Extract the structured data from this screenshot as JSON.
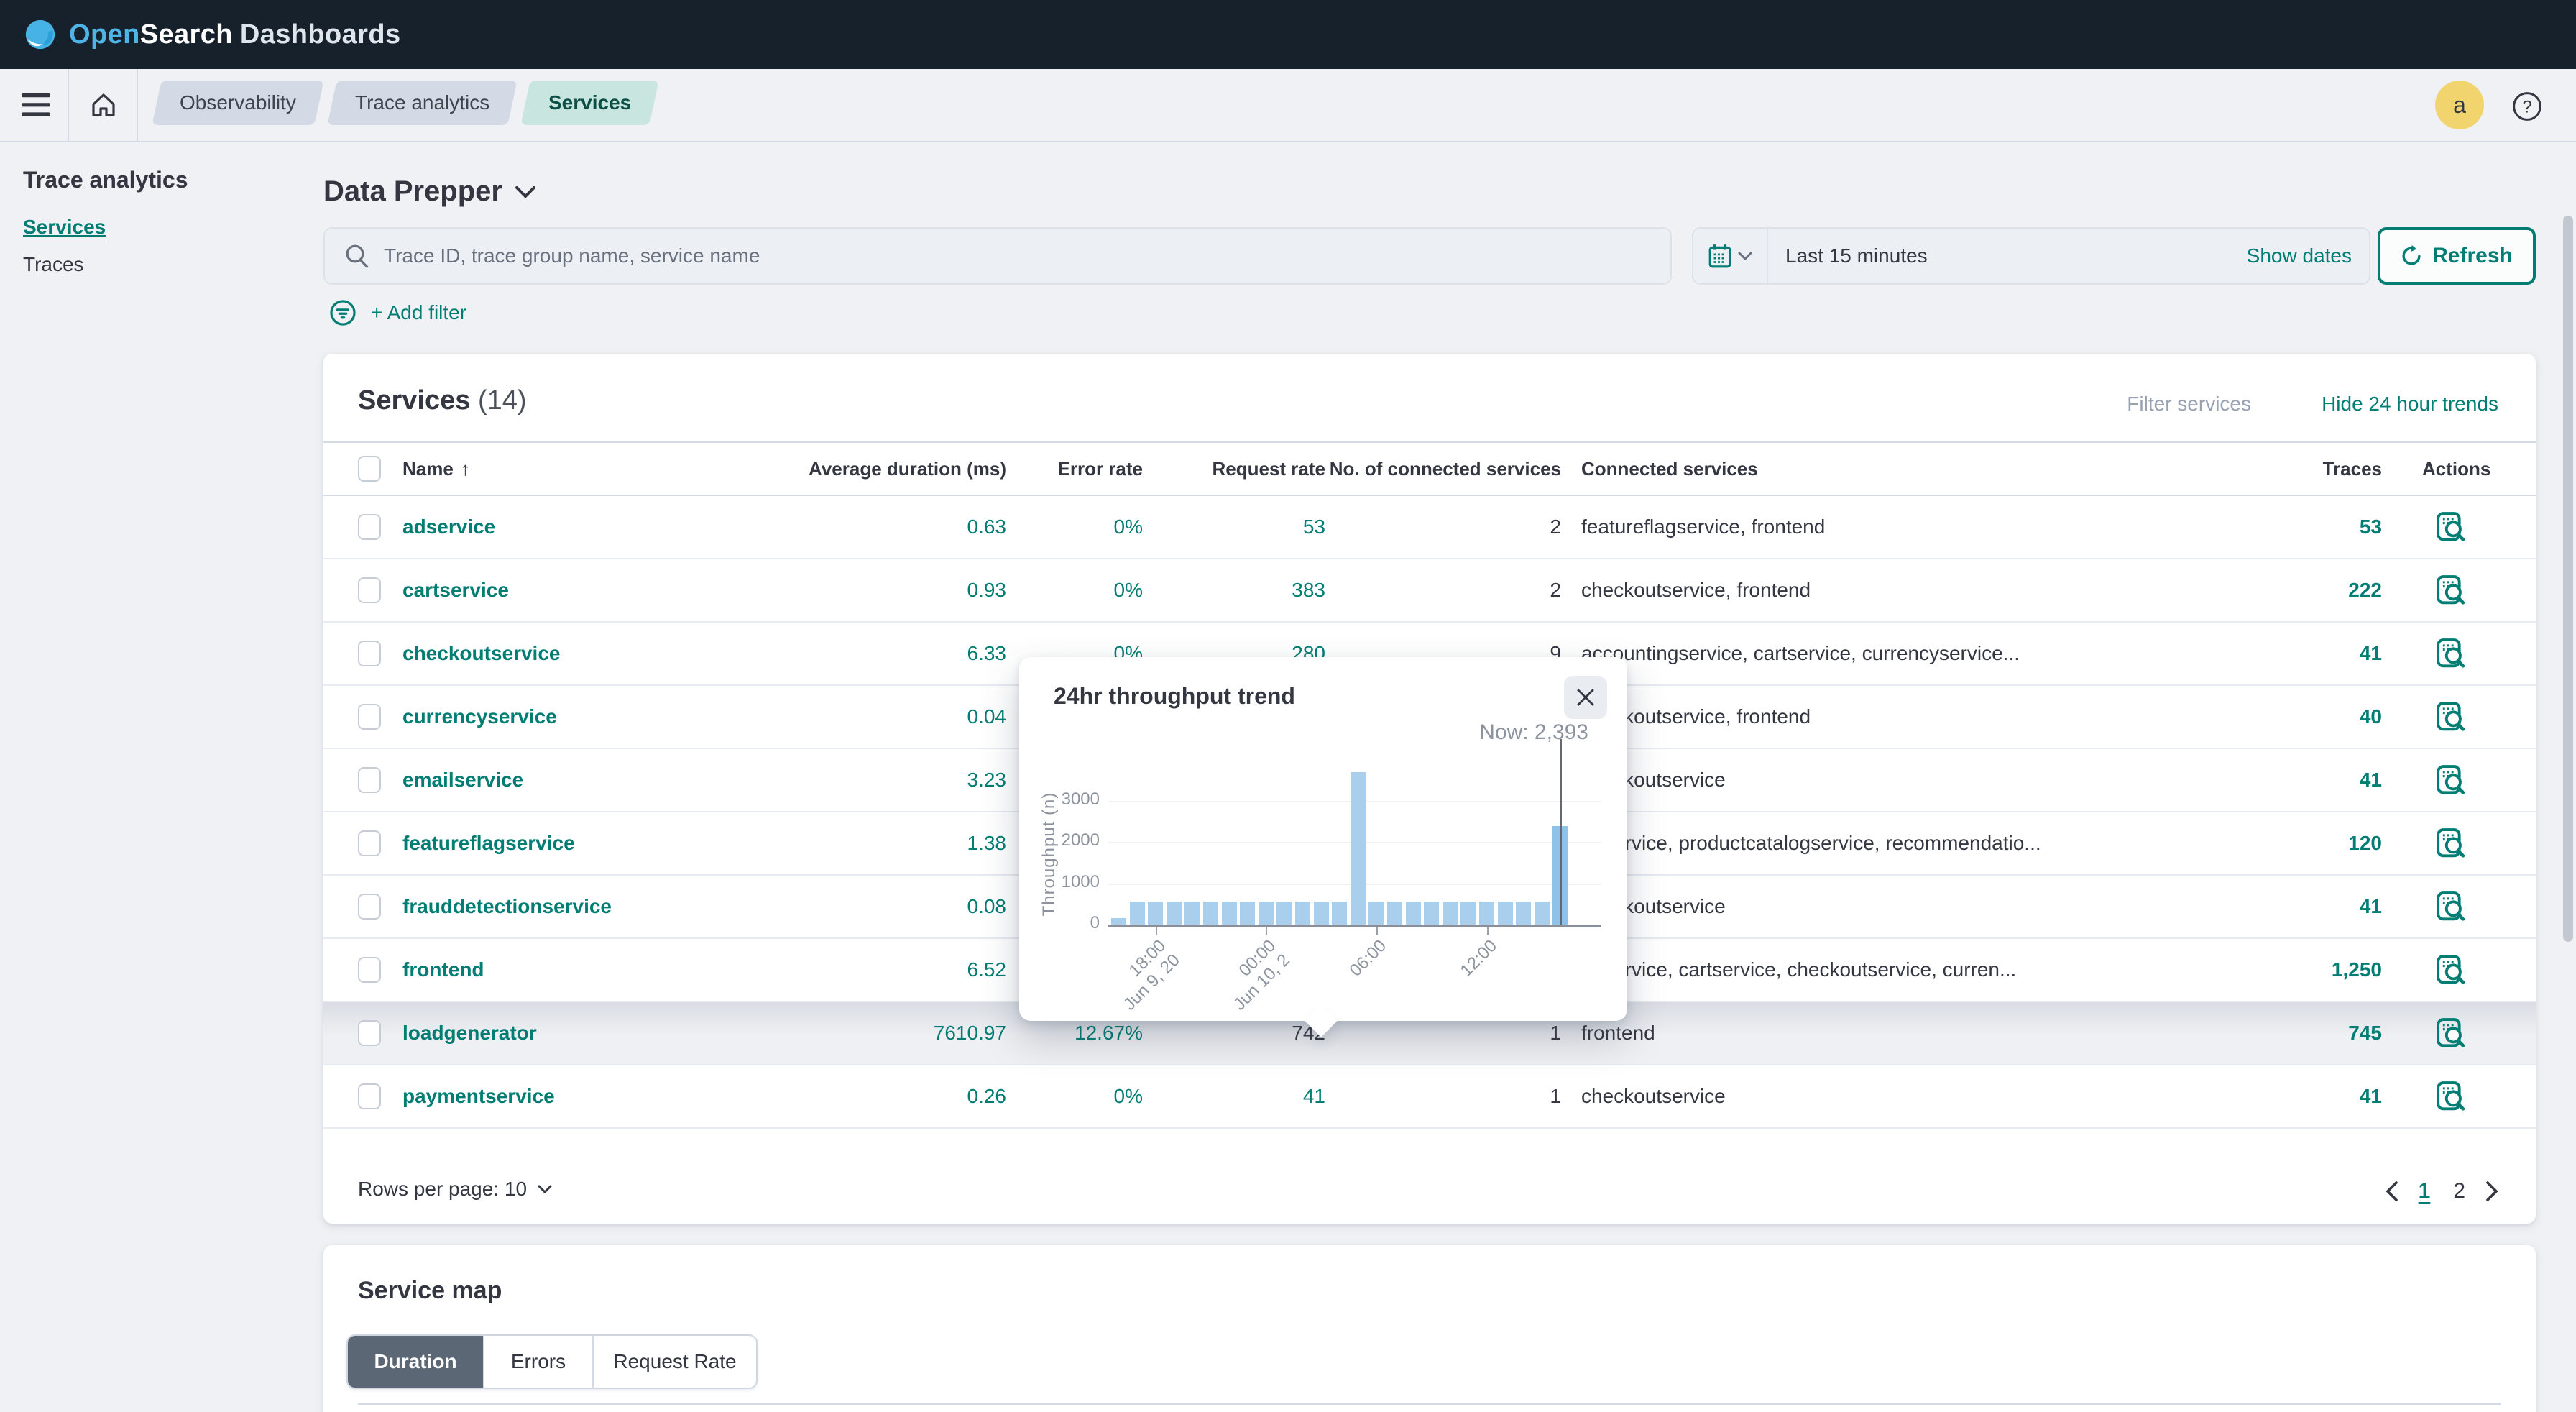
{
  "header": {
    "brand_open": "Open",
    "brand_search": "Search",
    "brand_suffix": "Dashboards",
    "breadcrumbs": [
      {
        "label": "Observability",
        "active": false
      },
      {
        "label": "Trace analytics",
        "active": false
      },
      {
        "label": "Services",
        "active": true
      }
    ],
    "avatar_initial": "a"
  },
  "sidebar": {
    "title": "Trace analytics",
    "items": [
      {
        "label": "Services",
        "active": true
      },
      {
        "label": "Traces",
        "active": false
      }
    ]
  },
  "toolbar": {
    "datasource_label": "Data Prepper",
    "search_placeholder": "Trace ID, trace group name, service name",
    "time_range": "Last 15 minutes",
    "show_dates_label": "Show dates",
    "refresh_label": "Refresh",
    "add_filter_label": "+ Add filter"
  },
  "services_panel": {
    "title": "Services",
    "count": "(14)",
    "filter_link": "Filter services",
    "trends_link": "Hide 24 hour trends",
    "columns": {
      "name": "Name",
      "avg_duration": "Average duration (ms)",
      "error_rate": "Error rate",
      "request_rate": "Request rate",
      "connected_count": "No. of connected services",
      "connected_services": "Connected services",
      "traces": "Traces",
      "actions": "Actions"
    },
    "rows": [
      {
        "name": "adservice",
        "avg_duration": "0.63",
        "error_rate": "0%",
        "request_rate": "53",
        "connected_count": "2",
        "connected_services": "featureflagservice, frontend",
        "traces": "53",
        "highlighted": false,
        "request_rate_dark": false
      },
      {
        "name": "cartservice",
        "avg_duration": "0.93",
        "error_rate": "0%",
        "request_rate": "383",
        "connected_count": "2",
        "connected_services": "checkoutservice, frontend",
        "traces": "222",
        "highlighted": false,
        "request_rate_dark": false
      },
      {
        "name": "checkoutservice",
        "avg_duration": "6.33",
        "error_rate": "0%",
        "request_rate": "280",
        "connected_count": "9",
        "connected_services": "accountingservice, cartservice, currencyservice...",
        "traces": "41",
        "highlighted": false,
        "request_rate_dark": false
      },
      {
        "name": "currencyservice",
        "avg_duration": "0.04",
        "error_rate": "",
        "request_rate": "",
        "connected_count": "",
        "connected_services": "checkoutservice, frontend",
        "traces": "40",
        "highlighted": false,
        "request_rate_dark": false
      },
      {
        "name": "emailservice",
        "avg_duration": "3.23",
        "error_rate": "",
        "request_rate": "",
        "connected_count": "",
        "connected_services": "checkoutservice",
        "traces": "41",
        "highlighted": false,
        "request_rate_dark": false
      },
      {
        "name": "featureflagservice",
        "avg_duration": "1.38",
        "error_rate": "",
        "request_rate": "",
        "connected_count": "",
        "connected_services": "adservice, productcatalogservice, recommendatio...",
        "traces": "120",
        "highlighted": false,
        "request_rate_dark": false
      },
      {
        "name": "frauddetectionservice",
        "avg_duration": "0.08",
        "error_rate": "",
        "request_rate": "",
        "connected_count": "",
        "connected_services": "checkoutservice",
        "traces": "41",
        "highlighted": false,
        "request_rate_dark": false
      },
      {
        "name": "frontend",
        "avg_duration": "6.52",
        "error_rate": "",
        "request_rate": "",
        "connected_count": "",
        "connected_services": "adservice, cartservice, checkoutservice, curren...",
        "traces": "1,250",
        "highlighted": false,
        "request_rate_dark": false
      },
      {
        "name": "loadgenerator",
        "avg_duration": "7610.97",
        "error_rate": "12.67%",
        "request_rate": "742",
        "connected_count": "1",
        "connected_services": "frontend",
        "traces": "745",
        "highlighted": true,
        "request_rate_dark": true
      },
      {
        "name": "paymentservice",
        "avg_duration": "0.26",
        "error_rate": "0%",
        "request_rate": "41",
        "connected_count": "1",
        "connected_services": "checkoutservice",
        "traces": "41",
        "highlighted": false,
        "request_rate_dark": false
      }
    ],
    "rows_per_page_label": "Rows per page: 10",
    "pagination": {
      "prev": "‹",
      "pages": [
        "1",
        "2"
      ],
      "active_page": "1",
      "next": "›"
    }
  },
  "trend_popup": {
    "title": "24hr throughput trend",
    "now_label": "Now: 2,393"
  },
  "chart_data": {
    "type": "bar",
    "title": "24hr throughput trend",
    "xlabel": "",
    "ylabel": "Throughput (n)",
    "yticks": [
      0,
      1000,
      2000,
      3000
    ],
    "ylim": [
      0,
      3900
    ],
    "grid": true,
    "legend": "none",
    "values": [
      150,
      550,
      550,
      550,
      550,
      550,
      550,
      550,
      550,
      550,
      550,
      550,
      550,
      3700,
      550,
      550,
      550,
      550,
      550,
      550,
      550,
      550,
      550,
      550,
      2393
    ],
    "now_value": 2393,
    "now_bar_index": 24,
    "xticks": [
      {
        "index": 2,
        "labels": [
          "18:00",
          "Jun 9, 20"
        ]
      },
      {
        "index": 8,
        "labels": [
          "00:00",
          "Jun 10, 2"
        ]
      },
      {
        "index": 14,
        "labels": [
          "06:00"
        ]
      },
      {
        "index": 20,
        "labels": [
          "12:00"
        ]
      }
    ],
    "bar_color": "#a9cfec"
  },
  "service_map": {
    "title": "Service map",
    "tabs": [
      {
        "label": "Duration",
        "active": true
      },
      {
        "label": "Errors",
        "active": false
      },
      {
        "label": "Request Rate",
        "active": false
      }
    ]
  },
  "colors": {
    "accent_teal": "#017d73",
    "header_dark": "#16212c",
    "bar_blue": "#a9cfec",
    "crumb_active_bg": "#c9e5e0",
    "avatar_yellow": "#f2d46f",
    "active_tab_bg": "#5b6775"
  }
}
